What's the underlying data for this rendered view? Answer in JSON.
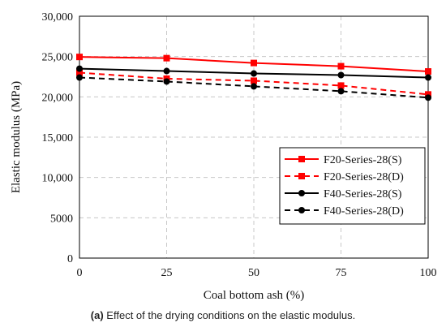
{
  "chart_data": {
    "type": "line",
    "xlabel": "Coal bottom ash (%)",
    "ylabel": "Elastic modulus (MPa)",
    "xlim": [
      0,
      100
    ],
    "ylim": [
      0,
      30000
    ],
    "xticks": [
      0,
      25,
      50,
      75,
      100
    ],
    "xtick_labels": [
      "0",
      "25",
      "50",
      "75",
      "100"
    ],
    "yticks": [
      0,
      5000,
      10000,
      15000,
      20000,
      25000,
      30000
    ],
    "ytick_labels": [
      "0",
      "5000",
      "10,000",
      "15,000",
      "20,000",
      "25,000",
      "30,000"
    ],
    "grid": true,
    "legend_position": "lower-right",
    "x": [
      0,
      25,
      50,
      75,
      100
    ],
    "series": [
      {
        "name": "F20-Series-28(S)",
        "values": [
          24950,
          24800,
          24200,
          23800,
          23150
        ],
        "color": "#ff0000",
        "line": "solid",
        "marker": "square"
      },
      {
        "name": "F20-Series-28(D)",
        "values": [
          23000,
          22250,
          22000,
          21400,
          20300
        ],
        "color": "#ff0000",
        "line": "dashed",
        "marker": "square"
      },
      {
        "name": "F40-Series-28(S)",
        "values": [
          23500,
          23200,
          22900,
          22700,
          22400
        ],
        "color": "#000000",
        "line": "solid",
        "marker": "circle"
      },
      {
        "name": "F40-Series-28(D)",
        "values": [
          22400,
          21900,
          21300,
          20700,
          19900
        ],
        "color": "#000000",
        "line": "dashed",
        "marker": "circle"
      }
    ]
  },
  "caption": {
    "label": "(a)",
    "text": " Effect of the drying conditions on the elastic modulus."
  }
}
